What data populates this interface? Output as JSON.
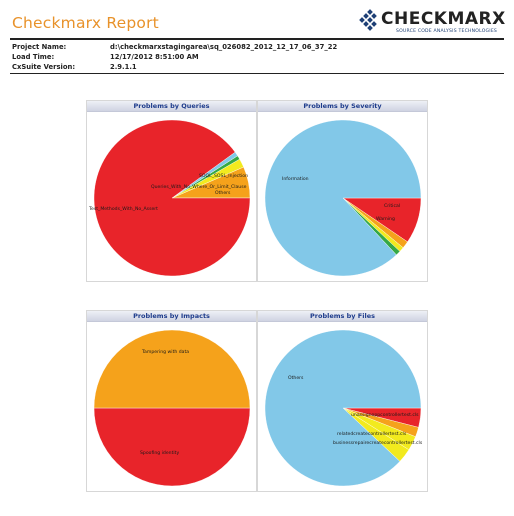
{
  "header": {
    "title": "Checkmarx Report",
    "logo_text": "CHECKMARX",
    "logo_tagline": "SOURCE CODE ANALYSIS TECHNOLOGIES"
  },
  "meta": [
    {
      "label": "Project Name:",
      "value": "d:\\checkmarxstagingarea\\sq_026082_2012_12_17_06_37_22"
    },
    {
      "label": "Load Time:",
      "value": "12/17/2012 8:51:00 AM"
    },
    {
      "label": "CxSuite Version:",
      "value": "2.9.1.1"
    }
  ],
  "colors": {
    "title": "#e8922a",
    "red": "#e8242a",
    "orange": "#f5a21b",
    "yellow": "#f2ea1e",
    "lightblue": "#82c8e8",
    "green": "#35a845",
    "panel_title": "#1e3c8c"
  },
  "chart_data": [
    {
      "type": "pie",
      "title": "Problems by Queries",
      "slices": [
        {
          "label": "SOQL_SOSL_Injection",
          "value": 6.5,
          "color": "#f5a21b"
        },
        {
          "label": "Queries_With_No_Where_Or_Limit_Clause",
          "value": 1.8,
          "color": "#f2ea1e"
        },
        {
          "label": "",
          "value": 0.8,
          "color": "#35a845"
        },
        {
          "label": "Others",
          "value": 0.9,
          "color": "#82c8e8"
        },
        {
          "label": "Test_Methods_With_No_Assert",
          "value": 90.0,
          "color": "#e8242a"
        }
      ]
    },
    {
      "type": "pie",
      "title": "Problems by Severity",
      "slices": [
        {
          "label": "Critical",
          "value": 9.5,
          "color": "#e8242a"
        },
        {
          "label": "",
          "value": 1.5,
          "color": "#f5a21b"
        },
        {
          "label": "",
          "value": 1.0,
          "color": "#f2ea1e"
        },
        {
          "label": "Warning",
          "value": 1.0,
          "color": "#35a845"
        },
        {
          "label": "Information",
          "value": 87.0,
          "color": "#82c8e8"
        }
      ]
    },
    {
      "type": "pie",
      "title": "Problems by Impacts",
      "slices": [
        {
          "label": "Spoofing identity",
          "value": 50,
          "color": "#e8242a"
        },
        {
          "label": "Tampering with data",
          "value": 50,
          "color": "#f5a21b"
        }
      ]
    },
    {
      "type": "pie",
      "title": "Problems by Files",
      "slices": [
        {
          "label": "unassignoppcontrollertest.cls",
          "value": 4,
          "color": "#e8242a"
        },
        {
          "label": "",
          "value": 2,
          "color": "#f5a21b"
        },
        {
          "label": "relatedcreatecontrollertest.cls",
          "value": 3,
          "color": "#f2ea1e"
        },
        {
          "label": "businessrepairecreatecontrollertest.cls",
          "value": 3,
          "color": "#f2ea1e"
        },
        {
          "label": "Others",
          "value": 88,
          "color": "#82c8e8"
        }
      ]
    }
  ]
}
